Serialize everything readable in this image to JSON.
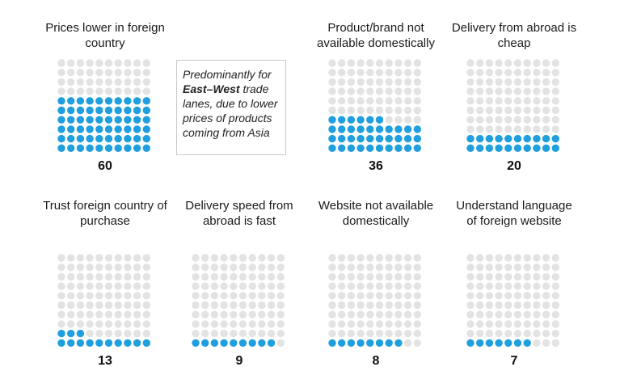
{
  "colors": {
    "filled": "#1f9fde",
    "empty": "#e3e3e3"
  },
  "note": {
    "before": "Predominantly for ",
    "bold": "East–West",
    "after": " trade lanes, due to lower prices of products coming from Asia"
  },
  "chart_data": {
    "type": "waffle",
    "units_per_grid": 100,
    "items": [
      {
        "title": "Prices lower in foreign country",
        "value": 60
      },
      {
        "title": "Product/brand not available domestically",
        "value": 36
      },
      {
        "title": "Delivery from abroad is cheap",
        "value": 20
      },
      {
        "title": "Trust foreign country of purchase",
        "value": 13
      },
      {
        "title": "Delivery speed from abroad is fast",
        "value": 9
      },
      {
        "title": "Website not available domestically",
        "value": 8
      },
      {
        "title": "Understand language of foreign website",
        "value": 7
      }
    ],
    "labels": [
      "60",
      "36",
      "20",
      "13",
      "9",
      "8",
      "7"
    ]
  }
}
